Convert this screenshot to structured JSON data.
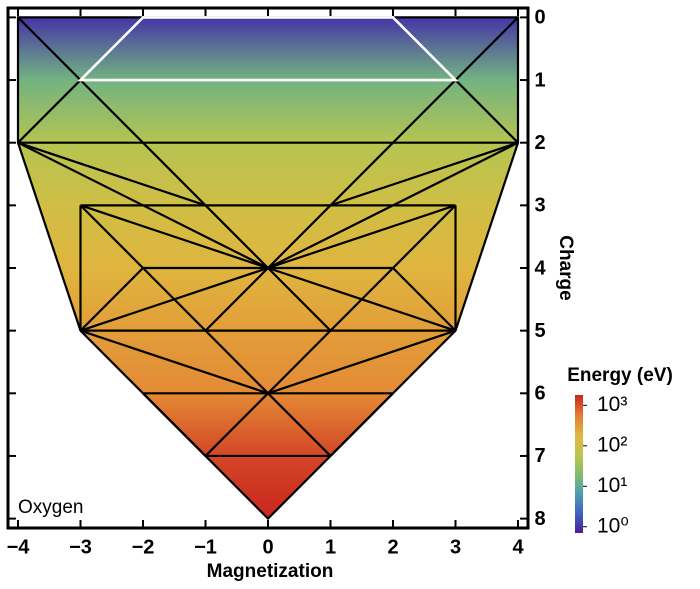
{
  "chart_data": {
    "type": "mesh",
    "annotation": "Oxygen",
    "xlabel": "Magnetization",
    "ylabel": "Charge",
    "xlim": [
      -4.16,
      4.16
    ],
    "ylim": [
      -0.15,
      8.15
    ],
    "y_inverted": true,
    "xticks": [
      {
        "value": -4,
        "label": "−4"
      },
      {
        "value": -3,
        "label": "−3"
      },
      {
        "value": -2,
        "label": "−2"
      },
      {
        "value": -1,
        "label": "−1"
      },
      0,
      1,
      2,
      3,
      4
    ],
    "yticks": [
      0,
      1,
      2,
      3,
      4,
      5,
      6,
      7,
      8
    ],
    "outline": [
      [
        -4,
        0
      ],
      [
        4,
        0
      ],
      [
        4,
        2
      ],
      [
        3,
        5
      ],
      [
        0,
        8
      ],
      [
        -3,
        5
      ],
      [
        -4,
        2
      ]
    ],
    "levels": {
      "charge": [
        0,
        1,
        2,
        3,
        4,
        5,
        6,
        7,
        8
      ],
      "energy": [
        1,
        14,
        49,
        104,
        181,
        295,
        433,
        1172,
        2043
      ]
    },
    "edges": [
      [
        [
          -4,
          0
        ],
        [
          0,
          4
        ]
      ],
      [
        [
          4,
          0
        ],
        [
          0,
          4
        ]
      ],
      [
        [
          -3,
          1
        ],
        [
          -4,
          2
        ]
      ],
      [
        [
          3,
          1
        ],
        [
          4,
          2
        ]
      ],
      [
        [
          -4,
          2
        ],
        [
          4,
          2
        ]
      ],
      [
        [
          -4,
          2
        ],
        [
          0,
          4
        ]
      ],
      [
        [
          4,
          2
        ],
        [
          0,
          4
        ]
      ],
      [
        [
          -4,
          2
        ],
        [
          -1,
          3
        ]
      ],
      [
        [
          4,
          2
        ],
        [
          1,
          3
        ]
      ],
      [
        [
          -3,
          3
        ],
        [
          3,
          3
        ]
      ],
      [
        [
          -3,
          3
        ],
        [
          -3,
          5
        ]
      ],
      [
        [
          3,
          3
        ],
        [
          3,
          5
        ]
      ],
      [
        [
          -3,
          3
        ],
        [
          0,
          4
        ]
      ],
      [
        [
          3,
          3
        ],
        [
          0,
          4
        ]
      ],
      [
        [
          -3,
          3
        ],
        [
          -2,
          4
        ]
      ],
      [
        [
          3,
          3
        ],
        [
          2,
          4
        ]
      ],
      [
        [
          -2,
          4
        ],
        [
          -3,
          5
        ]
      ],
      [
        [
          2,
          4
        ],
        [
          3,
          5
        ]
      ],
      [
        [
          -2,
          4
        ],
        [
          2,
          4
        ]
      ],
      [
        [
          -3,
          5
        ],
        [
          0,
          4
        ]
      ],
      [
        [
          3,
          5
        ],
        [
          0,
          4
        ]
      ],
      [
        [
          -2,
          4
        ],
        [
          -1,
          5
        ]
      ],
      [
        [
          2,
          4
        ],
        [
          1,
          5
        ]
      ],
      [
        [
          0,
          4
        ],
        [
          -1,
          5
        ]
      ],
      [
        [
          0,
          4
        ],
        [
          1,
          5
        ]
      ],
      [
        [
          -3,
          5
        ],
        [
          3,
          5
        ]
      ],
      [
        [
          -3,
          5
        ],
        [
          0,
          6
        ]
      ],
      [
        [
          3,
          5
        ],
        [
          0,
          6
        ]
      ],
      [
        [
          -1,
          5
        ],
        [
          0,
          6
        ]
      ],
      [
        [
          1,
          5
        ],
        [
          0,
          6
        ]
      ],
      [
        [
          -2,
          6
        ],
        [
          2,
          6
        ]
      ],
      [
        [
          -2,
          6
        ],
        [
          -1,
          7
        ]
      ],
      [
        [
          2,
          6
        ],
        [
          1,
          7
        ]
      ],
      [
        [
          0,
          6
        ],
        [
          -1,
          7
        ]
      ],
      [
        [
          0,
          6
        ],
        [
          1,
          7
        ]
      ],
      [
        [
          -1,
          7
        ],
        [
          1,
          7
        ]
      ]
    ],
    "highlight": {
      "color": "#ffffff",
      "outline": [
        [
          -2,
          0
        ],
        [
          2,
          0
        ],
        [
          3,
          1
        ],
        [
          -3,
          1
        ]
      ]
    },
    "edge_color": "#000000",
    "colorbar": {
      "label": "Energy (eV)",
      "log": true,
      "clim": [
        0.7,
        1800
      ],
      "ticks": [
        {
          "value": 1,
          "label": "10⁰"
        },
        {
          "value": 10,
          "label": "10¹"
        },
        {
          "value": 100,
          "label": "10²"
        },
        {
          "value": 1000,
          "label": "10³"
        }
      ],
      "colors": [
        "#4a1f9a",
        "#3d63c0",
        "#4d9eb0",
        "#84bd6a",
        "#c2c64a",
        "#e0b43e",
        "#e47a32",
        "#c9261f"
      ]
    }
  }
}
